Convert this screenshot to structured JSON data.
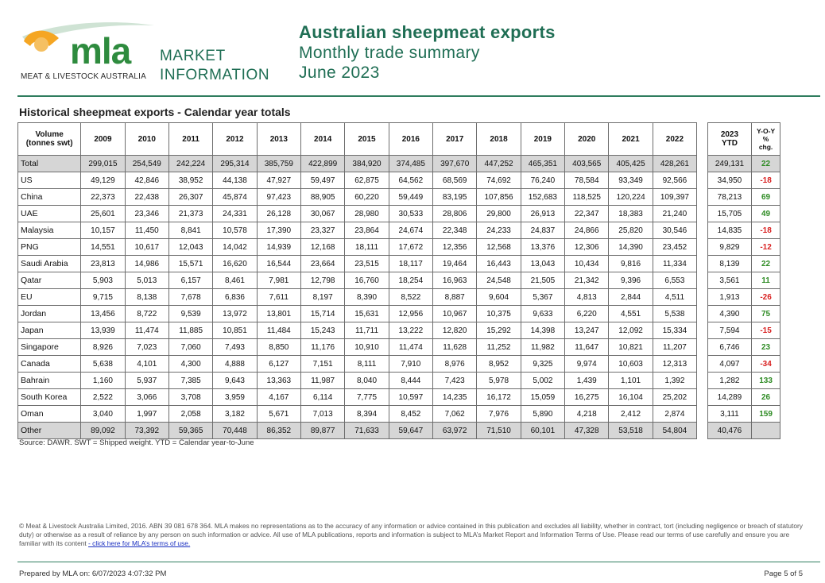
{
  "header": {
    "logo_text": "mla",
    "logo_subtitle": "MEAT & LIVESTOCK AUSTRALIA",
    "market_line1": "MARKET",
    "market_line2": "INFORMATION",
    "title": "Australian sheepmeat exports",
    "subtitle": "Monthly trade summary",
    "period": "June 2023"
  },
  "section_title": "Historical sheepmeat exports - Calendar year totals",
  "table": {
    "volume_header": [
      "Volume",
      "(tonnes swt)"
    ],
    "years": [
      "2009",
      "2010",
      "2011",
      "2012",
      "2013",
      "2014",
      "2015",
      "2016",
      "2017",
      "2018",
      "2019",
      "2020",
      "2021",
      "2022"
    ],
    "ytd_header": [
      "2023",
      "YTD"
    ],
    "yoy_header": [
      "Y-O-Y",
      "%",
      "chg."
    ],
    "rows": [
      {
        "label": "Total",
        "values": [
          "299,015",
          "254,549",
          "242,224",
          "295,314",
          "385,759",
          "422,899",
          "384,920",
          "374,485",
          "397,670",
          "447,252",
          "465,351",
          "403,565",
          "405,425",
          "428,261"
        ],
        "ytd": "249,131",
        "yoy": "22"
      },
      {
        "label": "US",
        "values": [
          "49,129",
          "42,846",
          "38,952",
          "44,138",
          "47,927",
          "59,497",
          "62,875",
          "64,562",
          "68,569",
          "74,692",
          "76,240",
          "78,584",
          "93,349",
          "92,566"
        ],
        "ytd": "34,950",
        "yoy": "-18"
      },
      {
        "label": "China",
        "values": [
          "22,373",
          "22,438",
          "26,307",
          "45,874",
          "97,423",
          "88,905",
          "60,220",
          "59,449",
          "83,195",
          "107,856",
          "152,683",
          "118,525",
          "120,224",
          "109,397"
        ],
        "ytd": "78,213",
        "yoy": "69"
      },
      {
        "label": "UAE",
        "values": [
          "25,601",
          "23,346",
          "21,373",
          "24,331",
          "26,128",
          "30,067",
          "28,980",
          "30,533",
          "28,806",
          "29,800",
          "26,913",
          "22,347",
          "18,383",
          "21,240"
        ],
        "ytd": "15,705",
        "yoy": "49"
      },
      {
        "label": "Malaysia",
        "values": [
          "10,157",
          "11,450",
          "8,841",
          "10,578",
          "17,390",
          "23,327",
          "23,864",
          "24,674",
          "22,348",
          "24,233",
          "24,837",
          "24,866",
          "25,820",
          "30,546"
        ],
        "ytd": "14,835",
        "yoy": "-18"
      },
      {
        "label": "PNG",
        "values": [
          "14,551",
          "10,617",
          "12,043",
          "14,042",
          "14,939",
          "12,168",
          "18,111",
          "17,672",
          "12,356",
          "12,568",
          "13,376",
          "12,306",
          "14,390",
          "23,452"
        ],
        "ytd": "9,829",
        "yoy": "-12"
      },
      {
        "label": "Saudi Arabia",
        "values": [
          "23,813",
          "14,986",
          "15,571",
          "16,620",
          "16,544",
          "23,664",
          "23,515",
          "18,117",
          "19,464",
          "16,443",
          "13,043",
          "10,434",
          "9,816",
          "11,334"
        ],
        "ytd": "8,139",
        "yoy": "22"
      },
      {
        "label": "Qatar",
        "values": [
          "5,903",
          "5,013",
          "6,157",
          "8,461",
          "7,981",
          "12,798",
          "16,760",
          "18,254",
          "16,963",
          "24,548",
          "21,505",
          "21,342",
          "9,396",
          "6,553"
        ],
        "ytd": "3,561",
        "yoy": "11"
      },
      {
        "label": "EU",
        "values": [
          "9,715",
          "8,138",
          "7,678",
          "6,836",
          "7,611",
          "8,197",
          "8,390",
          "8,522",
          "8,887",
          "9,604",
          "5,367",
          "4,813",
          "2,844",
          "4,511"
        ],
        "ytd": "1,913",
        "yoy": "-26"
      },
      {
        "label": "Jordan",
        "values": [
          "13,456",
          "8,722",
          "9,539",
          "13,972",
          "13,801",
          "15,714",
          "15,631",
          "12,956",
          "10,967",
          "10,375",
          "9,633",
          "6,220",
          "4,551",
          "5,538"
        ],
        "ytd": "4,390",
        "yoy": "75"
      },
      {
        "label": "Japan",
        "values": [
          "13,939",
          "11,474",
          "11,885",
          "10,851",
          "11,484",
          "15,243",
          "11,711",
          "13,222",
          "12,820",
          "15,292",
          "14,398",
          "13,247",
          "12,092",
          "15,334"
        ],
        "ytd": "7,594",
        "yoy": "-15"
      },
      {
        "label": "Singapore",
        "values": [
          "8,926",
          "7,023",
          "7,060",
          "7,493",
          "8,850",
          "11,176",
          "10,910",
          "11,474",
          "11,628",
          "11,252",
          "11,982",
          "11,647",
          "10,821",
          "11,207"
        ],
        "ytd": "6,746",
        "yoy": "23"
      },
      {
        "label": "Canada",
        "values": [
          "5,638",
          "4,101",
          "4,300",
          "4,888",
          "6,127",
          "7,151",
          "8,111",
          "7,910",
          "8,976",
          "8,952",
          "9,325",
          "9,974",
          "10,603",
          "12,313"
        ],
        "ytd": "4,097",
        "yoy": "-34"
      },
      {
        "label": "Bahrain",
        "values": [
          "1,160",
          "5,937",
          "7,385",
          "9,643",
          "13,363",
          "11,987",
          "8,040",
          "8,444",
          "7,423",
          "5,978",
          "5,002",
          "1,439",
          "1,101",
          "1,392"
        ],
        "ytd": "1,282",
        "yoy": "133"
      },
      {
        "label": "South Korea",
        "values": [
          "2,522",
          "3,066",
          "3,708",
          "3,959",
          "4,167",
          "6,114",
          "7,775",
          "10,597",
          "14,235",
          "16,172",
          "15,059",
          "16,275",
          "16,104",
          "25,202"
        ],
        "ytd": "14,289",
        "yoy": "26"
      },
      {
        "label": "Oman",
        "values": [
          "3,040",
          "1,997",
          "2,058",
          "3,182",
          "5,671",
          "7,013",
          "8,394",
          "8,452",
          "7,062",
          "7,976",
          "5,890",
          "4,218",
          "2,412",
          "2,874"
        ],
        "ytd": "3,111",
        "yoy": "159"
      },
      {
        "label": "Other",
        "values": [
          "89,092",
          "73,392",
          "59,365",
          "70,448",
          "86,352",
          "89,877",
          "71,633",
          "59,647",
          "63,972",
          "71,510",
          "60,101",
          "47,328",
          "53,518",
          "54,804"
        ],
        "ytd": "40,476",
        "yoy": ""
      }
    ]
  },
  "source_note": "Source: DAWR. SWT = Shipped weight. YTD = Calendar year-to-June",
  "disclaimer": {
    "text": "© Meat & Livestock Australia Limited, 2016. ABN 39 081 678 364. MLA makes no representations as to the accuracy of any information or advice contained in this publication and excludes all liability, whether in contract, tort (including negligence or breach of statutory duty) or otherwise as a result of reliance by any person on such information or advice. All use of MLA publications, reports and information is subject to MLA’s Market Report and Information Terms of Use. Please read our terms of use carefully and ensure you are familiar with its content ",
    "link_text": "- click here for MLA’s terms of use."
  },
  "footer": {
    "prepared": "Prepared by MLA on: 6/07/2023 4:07:32 PM",
    "page": "Page 5 of 5"
  },
  "colors": {
    "brand_green": "#1f6e54",
    "logo_green": "#2e8b3e",
    "logo_orange": "#f5a623",
    "positive": "#2e8b24",
    "negative": "#d81f1f",
    "row_shade": "#d6d6d6"
  }
}
